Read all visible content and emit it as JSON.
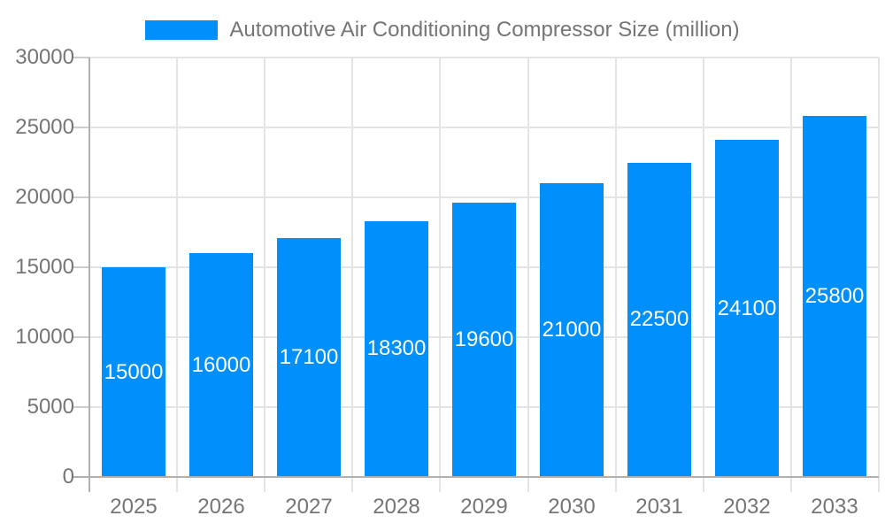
{
  "legend": {
    "label": "Automotive Air Conditioning Compressor Size (million)"
  },
  "chart_data": {
    "type": "bar",
    "title": "Automotive Air Conditioning Compressor Size (million)",
    "legend_position": "top",
    "categories": [
      "2025",
      "2026",
      "2027",
      "2028",
      "2029",
      "2030",
      "2031",
      "2032",
      "2033"
    ],
    "series": [
      {
        "name": "Automotive Air Conditioning Compressor Size (million)",
        "values": [
          15000,
          16000,
          17100,
          18300,
          19600,
          21000,
          22500,
          24100,
          25800
        ],
        "color": "#008ffb"
      }
    ],
    "data_labels": [
      "15000",
      "16000",
      "17100",
      "18300",
      "19600",
      "21000",
      "22500",
      "24100",
      "25800"
    ],
    "xlabel": "",
    "ylabel": "",
    "ylim": [
      0,
      30000
    ],
    "yticks": [
      0,
      5000,
      10000,
      15000,
      20000,
      25000,
      30000
    ],
    "ytick_labels": [
      "0",
      "5000",
      "10000",
      "15000",
      "20000",
      "25000",
      "30000"
    ],
    "grid": true,
    "colors": {
      "bar": "#008ffb",
      "axis_text": "#757575",
      "data_label_text": "#ffffff",
      "gridline": "#e4e4e4",
      "axis_line": "#b0b0b0",
      "tick": "#cccccc",
      "background": "#ffffff"
    }
  }
}
